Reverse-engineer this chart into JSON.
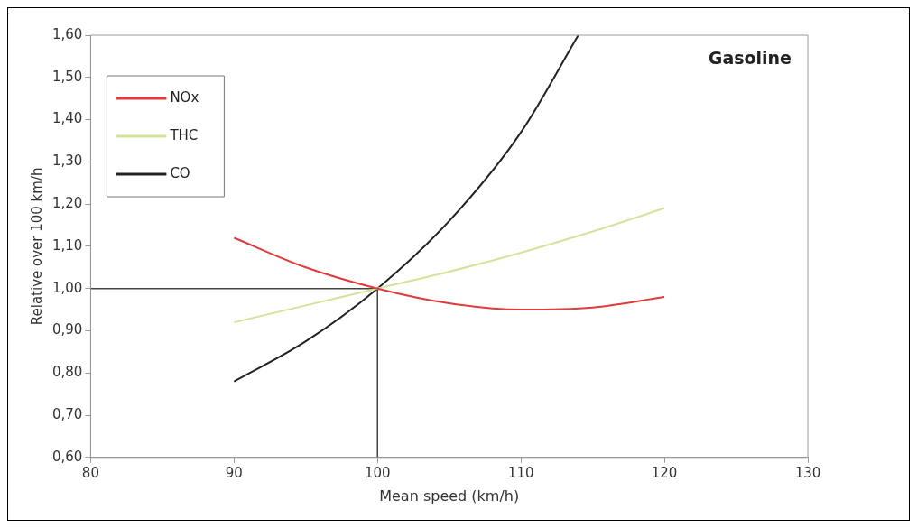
{
  "chart_data": {
    "type": "line",
    "xlabel": "Mean speed (km/h)",
    "ylabel": "Relative over 100 km/h",
    "annotations": [
      "Gasoline"
    ],
    "xlim": [
      80,
      130
    ],
    "xticks": [
      80,
      90,
      100,
      110,
      120,
      130
    ],
    "ylim": [
      0.6,
      1.6
    ],
    "yticks": [
      {
        "value": 0.6,
        "label": "0,60"
      },
      {
        "value": 0.7,
        "label": "0,70"
      },
      {
        "value": 0.8,
        "label": "0,80"
      },
      {
        "value": 0.9,
        "label": "0,90"
      },
      {
        "value": 1.0,
        "label": "1,00"
      },
      {
        "value": 1.1,
        "label": "1,10"
      },
      {
        "value": 1.2,
        "label": "1,20"
      },
      {
        "value": 1.3,
        "label": "1,30"
      },
      {
        "value": 1.4,
        "label": "1,40"
      },
      {
        "value": 1.5,
        "label": "1,50"
      },
      {
        "value": 1.6,
        "label": "1,60"
      }
    ],
    "legend": "top left",
    "grid": false,
    "marker": "none",
    "line_style": "solid",
    "series": [
      {
        "name": "NOx",
        "color": "#e03a3a",
        "x": [
          90,
          95,
          100,
          105,
          110,
          115,
          120
        ],
        "values": [
          1.12,
          1.05,
          1.0,
          0.965,
          0.95,
          0.955,
          0.98
        ]
      },
      {
        "name": "THC",
        "color": "#d2e39a",
        "x": [
          90,
          95,
          100,
          105,
          110,
          115,
          120
        ],
        "values": [
          0.92,
          0.96,
          1.0,
          1.04,
          1.085,
          1.135,
          1.19
        ]
      },
      {
        "name": "CO",
        "color": "#222222",
        "x": [
          90,
          95,
          100,
          105,
          110,
          114
        ],
        "values": [
          0.78,
          0.875,
          1.0,
          1.16,
          1.37,
          1.6
        ]
      },
      {
        "color": "#444444",
        "x": [
          80,
          100,
          100
        ],
        "values": [
          1.0,
          1.0,
          0.6
        ]
      }
    ]
  }
}
